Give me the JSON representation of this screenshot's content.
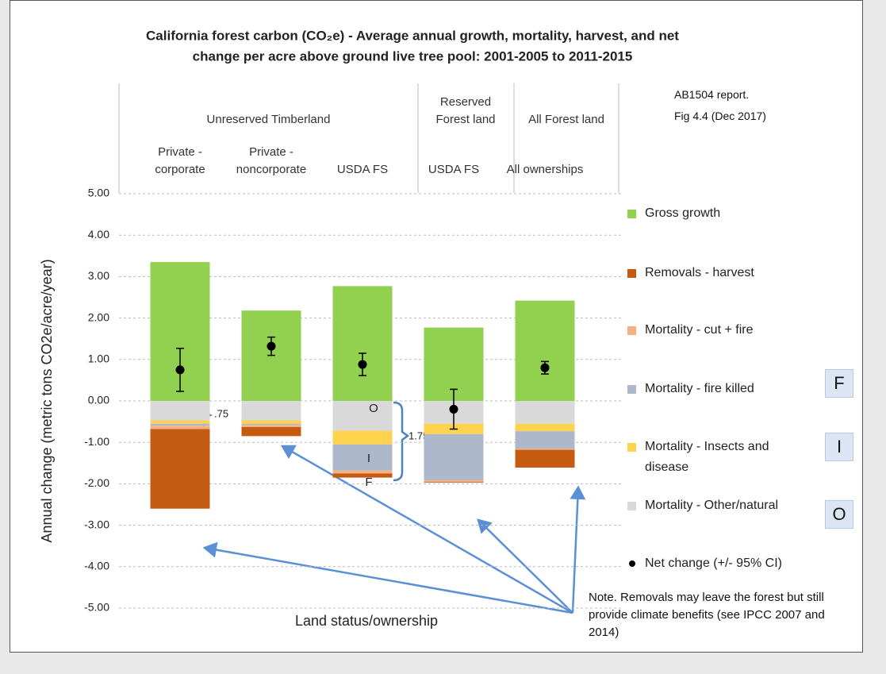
{
  "chart_data": {
    "type": "bar",
    "title": [
      "California forest carbon (CO₂e) - Average annual growth, mortality, harvest, and net",
      "change per acre above ground live tree pool: 2001-2005 to 2011-2015"
    ],
    "source": [
      "AB1504 report.",
      "Fig 4.4 (Dec 2017)"
    ],
    "groups": [
      "Unreserved Timberland",
      "Reserved Forest land",
      "All Forest land"
    ],
    "categories": [
      "Private - corporate",
      "Private - noncorporate",
      "USDA FS",
      "USDA FS",
      "All ownerships"
    ],
    "xlabel": "Land status/ownership",
    "ylabel": "Annual change  (metric tons CO2e/acre/year)",
    "ylim": [
      -5,
      5
    ],
    "yticks": [
      {
        "value": 5,
        "label": "5.00"
      },
      {
        "value": 4,
        "label": "4.00"
      },
      {
        "value": 3,
        "label": "3.00"
      },
      {
        "value": 2,
        "label": "2.00"
      },
      {
        "value": 1,
        "label": "1.00"
      },
      {
        "value": 0,
        "label": "0.00"
      },
      {
        "value": -1,
        "label": "-1.00"
      },
      {
        "value": -2,
        "label": "-2.00"
      },
      {
        "value": -3,
        "label": "-3.00"
      },
      {
        "value": -4,
        "label": "-4.00"
      },
      {
        "value": -5,
        "label": "-5.00"
      }
    ],
    "grid": true,
    "stacked": true,
    "series": [
      {
        "name": "Gross growth",
        "color": "#92d050",
        "values": [
          3.35,
          2.18,
          2.77,
          1.77,
          2.42
        ]
      },
      {
        "name": "Removals - harvest",
        "color": "#c55a11",
        "values": [
          -1.92,
          -0.22,
          -0.1,
          -0.02,
          -0.43
        ]
      },
      {
        "name": "Mortality - cut + fire",
        "color": "#f4b183",
        "values": [
          -0.08,
          -0.05,
          -0.07,
          -0.03,
          -0.03
        ]
      },
      {
        "name": "Mortality - fire killed",
        "color": "#adb9ca",
        "values": [
          -0.05,
          -0.03,
          -0.63,
          -1.12,
          -0.42
        ]
      },
      {
        "name": "Mortality - Insects and disease",
        "color": "#ffd34d",
        "values": [
          -0.08,
          -0.08,
          -0.33,
          -0.25,
          -0.18
        ]
      },
      {
        "name": "Mortality - Other/natural",
        "color": "#d9d9d9",
        "values": [
          -0.47,
          -0.47,
          -0.72,
          -0.55,
          -0.55
        ]
      }
    ],
    "net": {
      "name": "Net change (+/- 95% CI)",
      "color": "#000000",
      "values": [
        0.75,
        1.32,
        0.88,
        -0.2,
        0.8
      ],
      "errors": [
        0.52,
        0.22,
        0.27,
        0.48,
        0.15
      ]
    },
    "annotations": [
      ".75",
      "1.75",
      "O",
      "I",
      "F"
    ],
    "key": [
      "F",
      "I",
      "O"
    ],
    "note": "Note. Removals may leave the forest but still provide climate benefits (see IPCC 2007 and 2014)"
  }
}
